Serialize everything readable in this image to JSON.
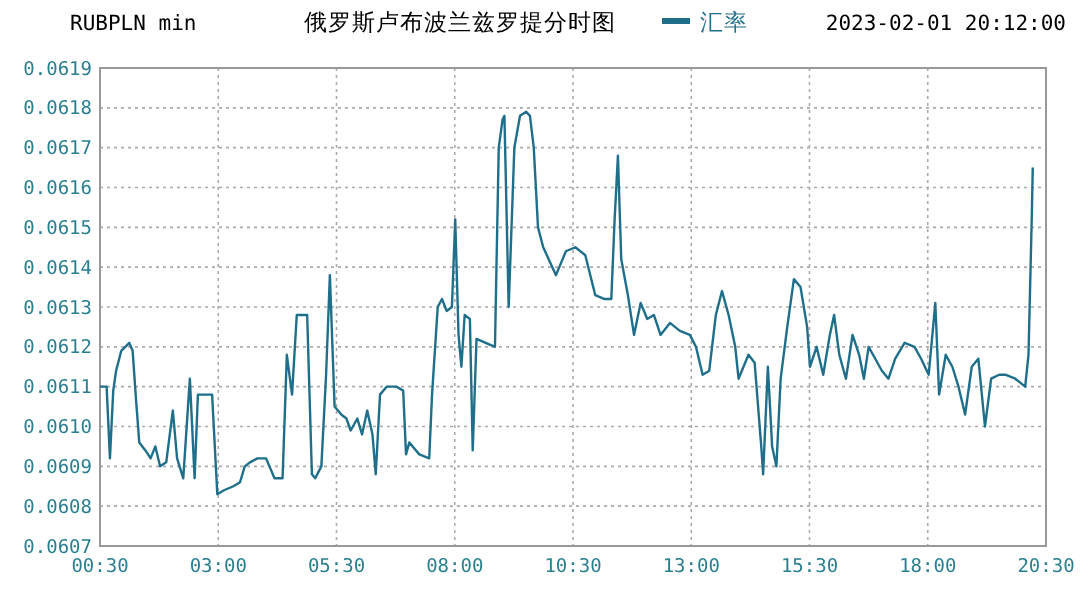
{
  "chart_data": {
    "type": "line",
    "title": "俄罗斯卢布波兰兹罗提分时图",
    "subtitle": "RUBPLN min",
    "annotations": [
      "2023-02-01 20:12:00"
    ],
    "xlim": [
      0.5,
      20.5
    ],
    "xticks": [
      {
        "value": 0.5,
        "label": "00:30"
      },
      {
        "value": 3,
        "label": "03:00"
      },
      {
        "value": 5.5,
        "label": "05:30"
      },
      {
        "value": 8,
        "label": "08:00"
      },
      {
        "value": 10.5,
        "label": "10:30"
      },
      {
        "value": 13,
        "label": "13:00"
      },
      {
        "value": 15.5,
        "label": "15:30"
      },
      {
        "value": 18,
        "label": "18:00"
      },
      {
        "value": 20.5,
        "label": "20:30"
      }
    ],
    "ylim": [
      0.0607,
      0.0619
    ],
    "yticks": [
      0.0607,
      0.0608,
      0.0609,
      {
        "value": 0.061,
        "label": "0.0610"
      },
      0.0611,
      0.0612,
      0.0613,
      0.0614,
      0.0615,
      0.0616,
      0.0617,
      0.0618,
      0.0619
    ],
    "grid": true,
    "legend": "top",
    "marker": "none",
    "line_style": "solid",
    "series": [
      {
        "name": "汇率",
        "color": "#1f6f8b",
        "x": [
          0.5,
          0.64,
          0.71,
          0.78,
          0.84,
          0.95,
          1.12,
          1.19,
          1.26,
          1.33,
          1.46,
          1.57,
          1.67,
          1.77,
          1.9,
          2.04,
          2.13,
          2.26,
          2.4,
          2.5,
          2.57,
          2.7,
          2.87,
          2.98,
          3.12,
          3.32,
          3.46,
          3.56,
          3.67,
          3.83,
          4.01,
          4.19,
          4.36,
          4.45,
          4.56,
          4.66,
          4.88,
          4.98,
          5.05,
          5.18,
          5.28,
          5.36,
          5.46,
          5.6,
          5.71,
          5.8,
          5.94,
          6.04,
          6.15,
          6.26,
          6.33,
          6.42,
          6.56,
          6.77,
          6.91,
          6.97,
          7.04,
          7.25,
          7.46,
          7.52,
          7.64,
          7.73,
          7.83,
          7.94,
          8.01,
          8.08,
          8.14,
          8.21,
          8.32,
          8.38,
          8.46,
          8.85,
          8.93,
          9.01,
          9.05,
          9.14,
          9.26,
          9.38,
          9.51,
          9.59,
          9.67,
          9.76,
          9.87,
          10.14,
          10.35,
          10.55,
          10.76,
          10.97,
          11.17,
          11.31,
          11.38,
          11.45,
          11.52,
          11.66,
          11.79,
          11.93,
          12.07,
          12.21,
          12.35,
          12.55,
          12.76,
          12.97,
          13.1,
          13.24,
          13.38,
          13.52,
          13.65,
          13.79,
          13.93,
          14.0,
          14.21,
          14.34,
          14.48,
          14.52,
          14.62,
          14.71,
          14.8,
          14.89,
          15.03,
          15.17,
          15.31,
          15.45,
          15.51,
          15.65,
          15.79,
          15.93,
          16.02,
          16.13,
          16.27,
          16.41,
          16.55,
          16.65,
          16.75,
          16.89,
          17.03,
          17.17,
          17.31,
          17.51,
          17.72,
          17.86,
          18.02,
          18.16,
          18.24,
          18.38,
          18.52,
          18.65,
          18.79,
          18.93,
          19.07,
          19.21,
          19.34,
          19.51,
          19.64,
          19.85,
          20.06,
          20.13,
          20.2,
          20.22
        ],
        "values": [
          0.0611,
          0.0611,
          0.06092,
          0.06109,
          0.06114,
          0.06119,
          0.06121,
          0.06119,
          0.06107,
          0.06096,
          0.06094,
          0.06092,
          0.06095,
          0.0609,
          0.06091,
          0.06104,
          0.06092,
          0.06087,
          0.06112,
          0.06087,
          0.06108,
          0.06108,
          0.06108,
          0.06083,
          0.06084,
          0.06085,
          0.06086,
          0.0609,
          0.06091,
          0.06092,
          0.06092,
          0.06087,
          0.06087,
          0.06118,
          0.06108,
          0.06128,
          0.06128,
          0.06088,
          0.06087,
          0.0609,
          0.06113,
          0.06138,
          0.06105,
          0.06103,
          0.06102,
          0.06099,
          0.06102,
          0.06098,
          0.06104,
          0.06098,
          0.06088,
          0.06108,
          0.0611,
          0.0611,
          0.06109,
          0.06093,
          0.06096,
          0.06093,
          0.06092,
          0.06108,
          0.0613,
          0.06132,
          0.06129,
          0.0613,
          0.06152,
          0.06123,
          0.06115,
          0.06128,
          0.06127,
          0.06094,
          0.06122,
          0.0612,
          0.0617,
          0.06177,
          0.06178,
          0.0613,
          0.0617,
          0.06178,
          0.06179,
          0.06178,
          0.0617,
          0.0615,
          0.06145,
          0.06138,
          0.06144,
          0.06145,
          0.06143,
          0.06133,
          0.06132,
          0.06132,
          0.06152,
          0.06168,
          0.06142,
          0.06133,
          0.06123,
          0.06131,
          0.06127,
          0.06128,
          0.06123,
          0.06126,
          0.06124,
          0.06123,
          0.0612,
          0.06113,
          0.06114,
          0.06128,
          0.06134,
          0.06128,
          0.0612,
          0.06112,
          0.06118,
          0.06116,
          0.06095,
          0.06088,
          0.06115,
          0.06095,
          0.0609,
          0.06112,
          0.06125,
          0.06137,
          0.06135,
          0.06125,
          0.06115,
          0.0612,
          0.06113,
          0.06123,
          0.06128,
          0.06118,
          0.06112,
          0.06123,
          0.06118,
          0.06112,
          0.0612,
          0.06117,
          0.06114,
          0.06112,
          0.06117,
          0.06121,
          0.0612,
          0.06117,
          0.06113,
          0.06131,
          0.06108,
          0.06118,
          0.06115,
          0.0611,
          0.06103,
          0.06115,
          0.06117,
          0.061,
          0.06112,
          0.06113,
          0.06113,
          0.06112,
          0.0611,
          0.06118,
          0.06153,
          0.06165
        ]
      }
    ]
  }
}
